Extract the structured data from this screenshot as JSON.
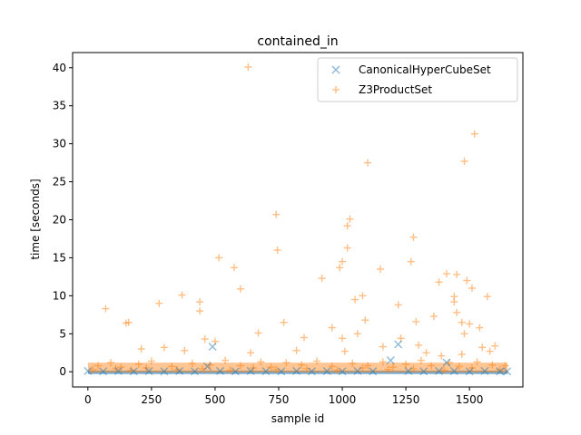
{
  "chart_data": {
    "type": "scatter",
    "title": "contained_in",
    "xlabel": "sample id",
    "ylabel": "time [seconds]",
    "xlim": [
      -60,
      1710
    ],
    "ylim": [
      -2,
      42
    ],
    "xticks": [
      0,
      250,
      500,
      750,
      1000,
      1250,
      1500
    ],
    "yticks": [
      0,
      5,
      10,
      15,
      20,
      25,
      30,
      35,
      40
    ],
    "grid": false,
    "legend_position": "top-right",
    "series": [
      {
        "name": "CanonicalHyperCubeSet",
        "marker": "x",
        "color": "#1f77b4",
        "points": [
          [
            0,
            0.1
          ],
          [
            60,
            0.05
          ],
          [
            120,
            0.1
          ],
          [
            180,
            0.05
          ],
          [
            240,
            0.08
          ],
          [
            300,
            0.06
          ],
          [
            360,
            0.1
          ],
          [
            420,
            0.05
          ],
          [
            470,
            0.7
          ],
          [
            490,
            3.3
          ],
          [
            520,
            0.1
          ],
          [
            580,
            0.05
          ],
          [
            640,
            0.1
          ],
          [
            700,
            0.07
          ],
          [
            760,
            0.05
          ],
          [
            820,
            0.1
          ],
          [
            880,
            0.06
          ],
          [
            940,
            0.08
          ],
          [
            1000,
            0.05
          ],
          [
            1060,
            0.1
          ],
          [
            1120,
            0.06
          ],
          [
            1190,
            1.5
          ],
          [
            1220,
            3.6
          ],
          [
            1260,
            0.1
          ],
          [
            1320,
            0.05
          ],
          [
            1380,
            0.1
          ],
          [
            1410,
            1.2
          ],
          [
            1440,
            0.08
          ],
          [
            1500,
            0.05
          ],
          [
            1560,
            0.1
          ],
          [
            1620,
            0.06
          ],
          [
            1648,
            0.05
          ]
        ]
      },
      {
        "name": "Z3ProductSet",
        "marker": "+",
        "color": "#ff7f0e",
        "points": [
          [
            630,
            40.1
          ],
          [
            1520,
            31.3
          ],
          [
            1480,
            27.7
          ],
          [
            1100,
            27.5
          ],
          [
            740,
            20.7
          ],
          [
            1030,
            20.1
          ],
          [
            1020,
            19.2
          ],
          [
            1280,
            17.7
          ],
          [
            1020,
            16.3
          ],
          [
            745,
            16.0
          ],
          [
            515,
            15.0
          ],
          [
            1000,
            14.5
          ],
          [
            1270,
            14.5
          ],
          [
            990,
            13.7
          ],
          [
            575,
            13.7
          ],
          [
            1150,
            13.5
          ],
          [
            1410,
            12.9
          ],
          [
            1450,
            12.8
          ],
          [
            920,
            12.3
          ],
          [
            1490,
            12.0
          ],
          [
            1380,
            11.8
          ],
          [
            600,
            10.9
          ],
          [
            1510,
            11.0
          ],
          [
            370,
            10.1
          ],
          [
            1080,
            10.0
          ],
          [
            1570,
            9.9
          ],
          [
            1440,
            9.9
          ],
          [
            1050,
            9.5
          ],
          [
            440,
            9.2
          ],
          [
            1220,
            8.8
          ],
          [
            280,
            9.0
          ],
          [
            70,
            8.3
          ],
          [
            440,
            8.0
          ],
          [
            1440,
            9.2
          ],
          [
            1450,
            7.8
          ],
          [
            1360,
            7.3
          ],
          [
            150,
            6.4
          ],
          [
            160,
            6.5
          ],
          [
            770,
            6.5
          ],
          [
            1090,
            6.8
          ],
          [
            1290,
            6.6
          ],
          [
            1470,
            6.5
          ],
          [
            1500,
            6.3
          ],
          [
            1540,
            5.8
          ],
          [
            960,
            5.8
          ],
          [
            1060,
            5.0
          ],
          [
            1480,
            5.0
          ],
          [
            670,
            5.1
          ],
          [
            850,
            4.5
          ],
          [
            460,
            4.3
          ],
          [
            1000,
            4.4
          ],
          [
            1230,
            4.4
          ],
          [
            500,
            4.0
          ],
          [
            1160,
            3.3
          ],
          [
            1300,
            3.5
          ],
          [
            1550,
            3.2
          ],
          [
            1600,
            3.4
          ],
          [
            210,
            3.0
          ],
          [
            300,
            3.2
          ],
          [
            380,
            2.8
          ],
          [
            640,
            2.5
          ],
          [
            820,
            2.8
          ],
          [
            1010,
            2.7
          ],
          [
            1330,
            2.5
          ],
          [
            1390,
            2.1
          ],
          [
            1470,
            2.3
          ],
          [
            1580,
            2.7
          ],
          [
            40,
            0.8
          ],
          [
            90,
            1.2
          ],
          [
            130,
            0.6
          ],
          [
            200,
            1.0
          ],
          [
            250,
            1.4
          ],
          [
            330,
            0.7
          ],
          [
            410,
            1.1
          ],
          [
            480,
            0.9
          ],
          [
            540,
            1.5
          ],
          [
            600,
            0.8
          ],
          [
            680,
            1.3
          ],
          [
            720,
            0.6
          ],
          [
            780,
            1.2
          ],
          [
            840,
            0.9
          ],
          [
            900,
            1.4
          ],
          [
            960,
            0.7
          ],
          [
            1040,
            1.1
          ],
          [
            1100,
            0.8
          ],
          [
            1160,
            1.3
          ],
          [
            1200,
            0.6
          ],
          [
            1250,
            1.0
          ],
          [
            1310,
            1.5
          ],
          [
            1350,
            0.8
          ],
          [
            1420,
            1.2
          ],
          [
            1460,
            0.7
          ],
          [
            1530,
            1.3
          ],
          [
            1590,
            0.9
          ],
          [
            1640,
            0.8
          ],
          [
            20,
            0.3
          ],
          [
            110,
            0.4
          ],
          [
            170,
            0.2
          ],
          [
            230,
            0.5
          ],
          [
            350,
            0.3
          ],
          [
            450,
            0.4
          ],
          [
            560,
            0.2
          ],
          [
            650,
            0.5
          ],
          [
            740,
            0.3
          ],
          [
            860,
            0.4
          ],
          [
            980,
            0.2
          ],
          [
            1080,
            0.5
          ],
          [
            1180,
            0.3
          ],
          [
            1280,
            0.4
          ],
          [
            1400,
            0.2
          ],
          [
            1510,
            0.5
          ],
          [
            1620,
            0.3
          ]
        ]
      }
    ]
  }
}
